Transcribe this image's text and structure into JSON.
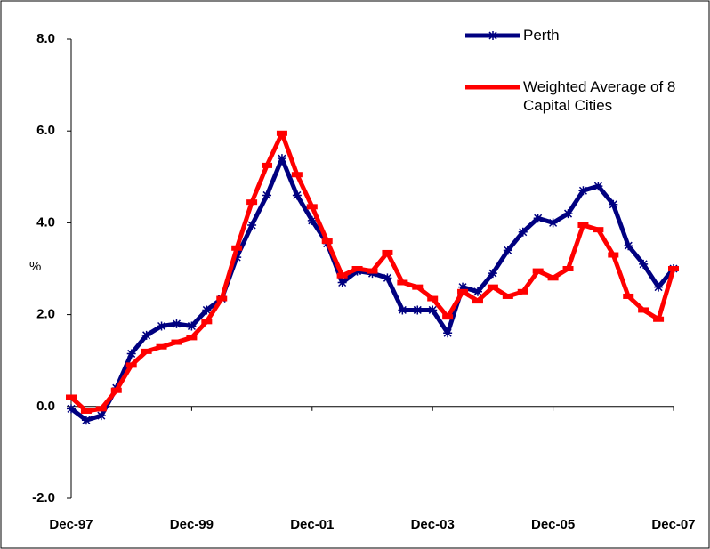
{
  "chart_data": {
    "type": "line",
    "y_label": "%",
    "categories": [
      "Dec-97",
      null,
      null,
      null,
      null,
      null,
      null,
      null,
      "Dec-99",
      null,
      null,
      null,
      null,
      null,
      null,
      null,
      "Dec-01",
      null,
      null,
      null,
      null,
      null,
      null,
      null,
      "Dec-03",
      null,
      null,
      null,
      null,
      null,
      null,
      null,
      "Dec-05",
      null,
      null,
      null,
      null,
      null,
      null,
      null,
      "Dec-07"
    ],
    "ylim": [
      -2,
      8
    ],
    "yticks": [
      {
        "value": -2,
        "label": "-2.0"
      },
      {
        "value": 0,
        "label": "0.0"
      },
      {
        "value": 2,
        "label": "2.0"
      },
      {
        "value": 4,
        "label": "4.0"
      },
      {
        "value": 6,
        "label": "6.0"
      },
      {
        "value": 8,
        "label": "8.0"
      }
    ],
    "grid": false,
    "legend": "top-right",
    "series": [
      {
        "name": "Perth",
        "color": "#000080",
        "marker": "star",
        "values": [
          -0.05,
          -0.3,
          -0.2,
          0.4,
          1.15,
          1.55,
          1.75,
          1.8,
          1.75,
          2.1,
          2.35,
          3.25,
          3.95,
          4.6,
          5.4,
          4.6,
          4.05,
          3.55,
          2.7,
          2.95,
          2.9,
          2.8,
          2.1,
          2.1,
          2.1,
          1.6,
          2.6,
          2.5,
          2.9,
          3.4,
          3.8,
          4.1,
          4.0,
          4.2,
          4.7,
          4.8,
          4.4,
          3.5,
          3.1,
          2.6,
          3.0
        ]
      },
      {
        "name": "Weighted Average of 8 Capital Cities",
        "color": "#ff0000",
        "marker": "dash",
        "values": [
          0.2,
          -0.1,
          -0.05,
          0.35,
          0.9,
          1.2,
          1.3,
          1.4,
          1.5,
          1.85,
          2.35,
          3.45,
          4.45,
          5.25,
          5.95,
          5.05,
          4.35,
          3.6,
          2.85,
          3.0,
          2.95,
          3.35,
          2.7,
          2.6,
          2.35,
          1.95,
          2.5,
          2.3,
          2.6,
          2.4,
          2.5,
          2.95,
          2.8,
          3.0,
          3.95,
          3.85,
          3.3,
          2.4,
          2.1,
          1.9,
          3.0
        ]
      }
    ]
  }
}
